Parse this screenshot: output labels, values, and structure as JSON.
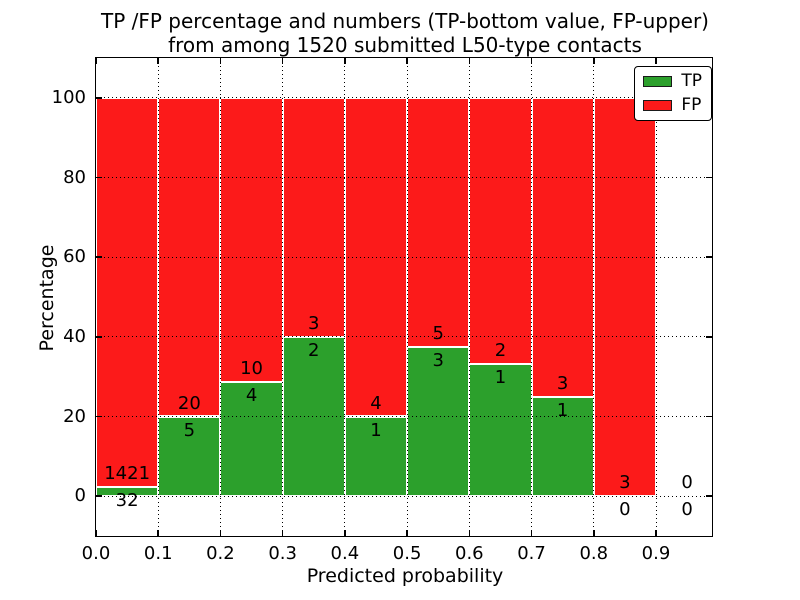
{
  "chart_data": {
    "type": "bar",
    "stacked": true,
    "unit": "percent",
    "title_line1": "TP /FP percentage and numbers (TP-bottom value, FP-upper)",
    "title_line2": "from among 1520 submitted L50-type contacts",
    "xlabel": "Predicted probability",
    "ylabel": "Percentage",
    "total_submitted": 1520,
    "xlim": [
      0.0,
      0.99
    ],
    "ylim": [
      -10,
      110
    ],
    "bin_width": 0.1,
    "xticks": [
      "0.0",
      "0.1",
      "0.2",
      "0.3",
      "0.4",
      "0.5",
      "0.6",
      "0.7",
      "0.8",
      "0.9"
    ],
    "xtick_values": [
      0.0,
      0.1,
      0.2,
      0.3,
      0.4,
      0.5,
      0.6,
      0.7,
      0.8,
      0.9
    ],
    "yticks": [
      "0",
      "20",
      "40",
      "60",
      "80",
      "100"
    ],
    "ytick_values": [
      0,
      20,
      40,
      60,
      80,
      100
    ],
    "grid": {
      "linestyle": "dotted",
      "color": "#000000",
      "on": true
    },
    "colors": {
      "tp": "#2ca02c",
      "fp": "#fc1a1a",
      "bar_edge": "#ffffff",
      "spine": "#000000"
    },
    "bins": [
      {
        "x_start": 0.0,
        "x_end": 0.1,
        "tp_count": 32,
        "fp_count": 1421,
        "tp_percent": 2.2,
        "fp_percent": 97.8
      },
      {
        "x_start": 0.1,
        "x_end": 0.2,
        "tp_count": 5,
        "fp_count": 20,
        "tp_percent": 20.0,
        "fp_percent": 80.0
      },
      {
        "x_start": 0.2,
        "x_end": 0.3,
        "tp_count": 4,
        "fp_count": 10,
        "tp_percent": 28.6,
        "fp_percent": 71.4
      },
      {
        "x_start": 0.3,
        "x_end": 0.4,
        "tp_count": 2,
        "fp_count": 3,
        "tp_percent": 40.0,
        "fp_percent": 60.0
      },
      {
        "x_start": 0.4,
        "x_end": 0.5,
        "tp_count": 1,
        "fp_count": 4,
        "tp_percent": 20.0,
        "fp_percent": 80.0
      },
      {
        "x_start": 0.5,
        "x_end": 0.6,
        "tp_count": 3,
        "fp_count": 5,
        "tp_percent": 37.5,
        "fp_percent": 62.5
      },
      {
        "x_start": 0.6,
        "x_end": 0.7,
        "tp_count": 1,
        "fp_count": 2,
        "tp_percent": 33.3,
        "fp_percent": 66.7
      },
      {
        "x_start": 0.7,
        "x_end": 0.8,
        "tp_count": 1,
        "fp_count": 3,
        "tp_percent": 25.0,
        "fp_percent": 75.0
      },
      {
        "x_start": 0.8,
        "x_end": 0.9,
        "tp_count": 0,
        "fp_count": 3,
        "tp_percent": 0.0,
        "fp_percent": 100.0
      },
      {
        "x_start": 0.9,
        "x_end": 1.0,
        "tp_count": 0,
        "fp_count": 0,
        "tp_percent": 0.0,
        "fp_percent": 0.0
      }
    ],
    "legend": {
      "position": "upper-right",
      "entries": [
        {
          "label": "TP",
          "color": "#2ca02c"
        },
        {
          "label": "FP",
          "color": "#fc1a1a"
        }
      ]
    }
  }
}
